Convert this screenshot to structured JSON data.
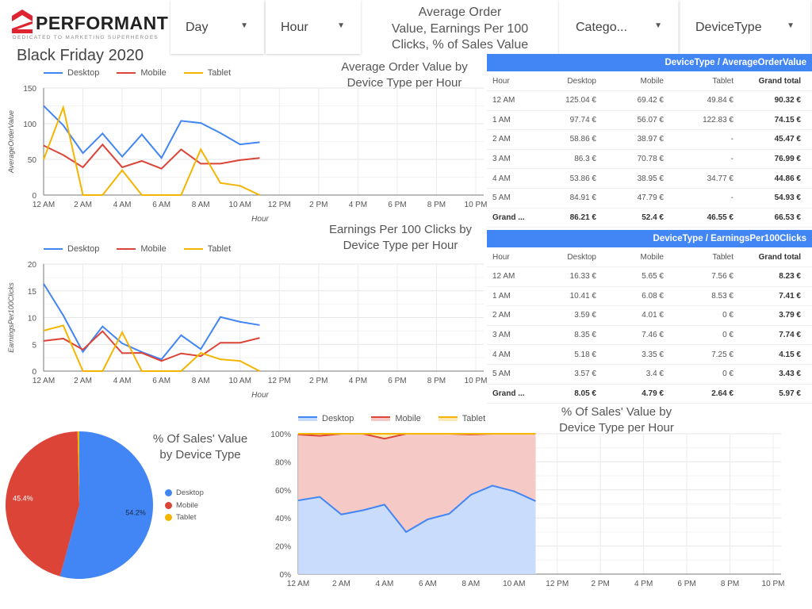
{
  "logo": {
    "name": "PERFORMANT",
    "tagline": "DEDICATED TO MARKETING SUPERHEROES",
    "brand_color": "#e0242f"
  },
  "filters": [
    {
      "label": "Day"
    },
    {
      "label": "Hour"
    },
    {
      "label": "Catego..."
    },
    {
      "label": "DeviceType"
    }
  ],
  "header_text": [
    "Average Order",
    "Value,  Earnings Per 100",
    "Clicks, % of Sales Value"
  ],
  "page_title": "Black Friday 2020",
  "colors": {
    "Desktop": "#4285f4",
    "Mobile": "#db4437",
    "Tablet": "#f4b400",
    "table_header": "#4285f4"
  },
  "x_ticks": [
    "12 AM",
    "2 AM",
    "4 AM",
    "6 AM",
    "8 AM",
    "10 AM",
    "12 PM",
    "2 PM",
    "4 PM",
    "6 PM",
    "8 PM",
    "10 PM"
  ],
  "chart_data": [
    {
      "type": "line",
      "title": [
        "Average Order Value by",
        "Device Type per Hour"
      ],
      "xlabel": "Hour",
      "ylabel": "AverageOrderValue",
      "ylim": [
        0,
        150
      ],
      "y_ticks": [
        "0",
        "50",
        "100",
        "150"
      ],
      "grid": true,
      "legend": "top-left",
      "x": [
        "12 AM",
        "1 AM",
        "2 AM",
        "3 AM",
        "4 AM",
        "5 AM",
        "6 AM",
        "7 AM",
        "8 AM",
        "9 AM",
        "10 AM",
        "11 AM"
      ],
      "series": [
        {
          "name": "Desktop",
          "values": [
            125.04,
            97.74,
            58.86,
            86.3,
            53.86,
            84.91,
            52,
            104,
            101,
            87,
            71,
            74
          ]
        },
        {
          "name": "Mobile",
          "values": [
            69.42,
            56.07,
            38.97,
            70.78,
            38.95,
            47.79,
            37,
            64,
            44,
            44,
            49,
            52
          ]
        },
        {
          "name": "Tablet",
          "values": [
            49.84,
            122.83,
            0,
            0,
            34.77,
            0,
            0,
            0,
            64,
            17,
            13,
            0
          ]
        }
      ]
    },
    {
      "type": "line",
      "title": [
        "Earnings Per 100 Clicks by",
        "Device Type per Hour"
      ],
      "xlabel": "Hour",
      "ylabel": "EarningsPer100Clicks",
      "ylim": [
        0,
        20
      ],
      "y_ticks": [
        "0",
        "5",
        "10",
        "15",
        "20"
      ],
      "grid": true,
      "legend": "top-left",
      "x": [
        "12 AM",
        "1 AM",
        "2 AM",
        "3 AM",
        "4 AM",
        "5 AM",
        "6 AM",
        "7 AM",
        "8 AM",
        "9 AM",
        "10 AM",
        "11 AM"
      ],
      "series": [
        {
          "name": "Desktop",
          "values": [
            16.33,
            10.41,
            3.59,
            8.35,
            5.18,
            3.57,
            2.2,
            6.7,
            4.1,
            10.1,
            9.2,
            8.6
          ]
        },
        {
          "name": "Mobile",
          "values": [
            5.65,
            6.08,
            4.01,
            7.46,
            3.35,
            3.4,
            1.9,
            3.3,
            2.8,
            5.3,
            5.3,
            6.2
          ]
        },
        {
          "name": "Tablet",
          "values": [
            7.56,
            8.53,
            0,
            0,
            7.25,
            0,
            0,
            0,
            3.4,
            2.2,
            1.9,
            0
          ]
        }
      ]
    },
    {
      "type": "pie",
      "title": [
        "% Of Sales' Value",
        "by Device Type"
      ],
      "legend": "right",
      "slices": [
        {
          "name": "Desktop",
          "value": 54.2,
          "label": "54.2%"
        },
        {
          "name": "Mobile",
          "value": 45.4,
          "label": "45.4%"
        },
        {
          "name": "Tablet",
          "value": 0.4,
          "label": ""
        }
      ]
    },
    {
      "type": "area",
      "stacked": "percent",
      "title": [
        "% Of Sales' Value by",
        "Device Type per Hour"
      ],
      "ylim": [
        0,
        100
      ],
      "y_ticks": [
        "0%",
        "20%",
        "40%",
        "60%",
        "80%",
        "100%"
      ],
      "grid": true,
      "legend": "top-left",
      "x": [
        "12 AM",
        "1 AM",
        "2 AM",
        "3 AM",
        "4 AM",
        "5 AM",
        "6 AM",
        "7 AM",
        "8 AM",
        "9 AM",
        "10 AM",
        "11 AM"
      ],
      "series": [
        {
          "name": "Desktop",
          "values": [
            52.5,
            55,
            42.5,
            45.5,
            49.5,
            30,
            39,
            43,
            56.5,
            63,
            59,
            52
          ]
        },
        {
          "name": "Mobile",
          "values": [
            47,
            43.5,
            57.5,
            54.5,
            47,
            70,
            61,
            57,
            43,
            37,
            41,
            48
          ]
        },
        {
          "name": "Tablet",
          "values": [
            0.5,
            1.5,
            0,
            0,
            3.5,
            0,
            0,
            0,
            0.5,
            0,
            0,
            0
          ]
        }
      ]
    }
  ],
  "tables": [
    {
      "title": "DeviceType / AverageOrderValue",
      "columns": [
        "Hour",
        "Desktop",
        "Mobile",
        "Tablet",
        "Grand total"
      ],
      "rows": [
        [
          "12 AM",
          "125.04 €",
          "69.42 €",
          "49.84 €",
          "90.32 €"
        ],
        [
          "1 AM",
          "97.74 €",
          "56.07 €",
          "122.83 €",
          "74.15 €"
        ],
        [
          "2 AM",
          "58.86 €",
          "38.97 €",
          "-",
          "45.47 €"
        ],
        [
          "3 AM",
          "86.3 €",
          "70.78 €",
          "-",
          "76.99 €"
        ],
        [
          "4 AM",
          "53.86 €",
          "38.95 €",
          "34.77 €",
          "44.86 €"
        ],
        [
          "5 AM",
          "84.91 €",
          "47.79 €",
          "-",
          "54.93 €"
        ]
      ],
      "grand": [
        "Grand ...",
        "86.21 €",
        "52.4 €",
        "46.55 €",
        "66.53 €"
      ]
    },
    {
      "title": "DeviceType / EarningsPer100Clicks",
      "columns": [
        "Hour",
        "Desktop",
        "Mobile",
        "Tablet",
        "Grand total"
      ],
      "rows": [
        [
          "12 AM",
          "16.33 €",
          "5.65 €",
          "7.56 €",
          "8.23 €"
        ],
        [
          "1 AM",
          "10.41 €",
          "6.08 €",
          "8.53 €",
          "7.41 €"
        ],
        [
          "2 AM",
          "3.59 €",
          "4.01 €",
          "0 €",
          "3.79 €"
        ],
        [
          "3 AM",
          "8.35 €",
          "7.46 €",
          "0 €",
          "7.74 €"
        ],
        [
          "4 AM",
          "5.18 €",
          "3.35 €",
          "7.25 €",
          "4.15 €"
        ],
        [
          "5 AM",
          "3.57 €",
          "3.4 €",
          "0 €",
          "3.43 €"
        ]
      ],
      "grand": [
        "Grand ...",
        "8.05 €",
        "4.79 €",
        "2.64 €",
        "5.97 €"
      ]
    }
  ]
}
